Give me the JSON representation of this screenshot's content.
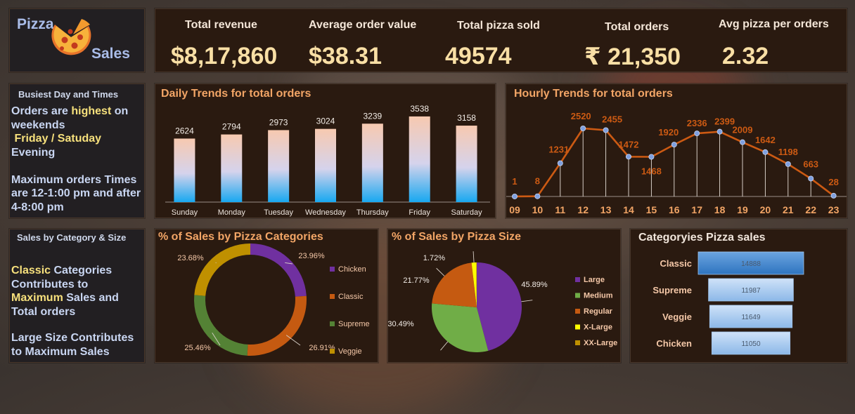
{
  "logo": {
    "word1": "Pizza",
    "word2": "Sales"
  },
  "kpis": [
    {
      "label": "Total revenue",
      "value": "$8,17,860"
    },
    {
      "label": "Average order value",
      "value": "$38.31"
    },
    {
      "label": "Total pizza sold",
      "value": "49574"
    },
    {
      "label": "Total orders",
      "value": "₹ 21,350"
    },
    {
      "label": "Avg pizza per orders",
      "value": "2.32"
    }
  ],
  "insights_busiest": {
    "title": "Busiest Day and Times",
    "line1_pre": "Orders are ",
    "line1_hl": "highest",
    "line1_post": " on weekends",
    "line2": "Friday / Satuday",
    "line3": "Evening",
    "line4": "Maximum orders Times are 12-1:00 pm and after",
    "line5": "4-8:00 pm"
  },
  "insights_category": {
    "title": "Sales by Category & Size",
    "hl1": "Classic",
    "t1": " Categories Contributes to ",
    "hl2": "Maximum",
    "t2": " Sales and Total orders",
    "t3": "Large Size Contributes to Maximum Sales"
  },
  "colors": {
    "accent": "#f2a566",
    "line": "#cc5a13",
    "marker": "#7fa0e0",
    "barTop": "#f7c9b0",
    "barBottom": "#18a8f0"
  },
  "chart_data": [
    {
      "id": "daily",
      "type": "bar",
      "title": "Daily Trends for total orders",
      "categories": [
        "Sunday",
        "Monday",
        "Tuesday",
        "Wednesday",
        "Thursday",
        "Friday",
        "Saturday"
      ],
      "values": [
        2624,
        2794,
        2973,
        3024,
        3239,
        3538,
        3158
      ],
      "ylim": [
        0,
        4000
      ]
    },
    {
      "id": "hourly",
      "type": "line",
      "title": "Hourly Trends for total orders",
      "x": [
        "09",
        "10",
        "11",
        "12",
        "13",
        "14",
        "15",
        "16",
        "17",
        "18",
        "19",
        "20",
        "21",
        "22",
        "23"
      ],
      "values": [
        1,
        8,
        1231,
        2520,
        2455,
        1472,
        1468,
        1920,
        2336,
        2399,
        2009,
        1642,
        1198,
        663,
        28
      ],
      "ylim": [
        0,
        2520
      ]
    },
    {
      "id": "categories",
      "type": "pie",
      "variant": "donut",
      "title": "% of Sales by Pizza Categories",
      "labels": [
        "Chicken",
        "Classic",
        "Supreme",
        "Veggie"
      ],
      "values": [
        23.96,
        26.91,
        25.46,
        23.68
      ],
      "value_labels": [
        "23.96%",
        "26.91%",
        "25.46%",
        "23.68%"
      ],
      "colors": [
        "#7030a0",
        "#c55a11",
        "#548235",
        "#bf9000"
      ]
    },
    {
      "id": "sizes",
      "type": "pie",
      "title": "% of Sales by Pizza Size",
      "labels": [
        "Large",
        "Medium",
        "Regular",
        "X-Large",
        "XX-Large"
      ],
      "values": [
        45.89,
        30.49,
        21.77,
        1.72,
        0.12
      ],
      "value_labels": [
        "45.89%",
        "30.49%",
        "21.77%",
        "1.72%",
        ""
      ],
      "colors": [
        "#7030a0",
        "#70ad47",
        "#c55a11",
        "#ffff00",
        "#bf9000"
      ]
    },
    {
      "id": "funnel",
      "type": "bar",
      "variant": "funnel",
      "title": "Categoryies Pizza sales",
      "categories": [
        "Classic",
        "Supreme",
        "Veggie",
        "Chicken"
      ],
      "values": [
        14888,
        11987,
        11649,
        11050
      ]
    }
  ]
}
